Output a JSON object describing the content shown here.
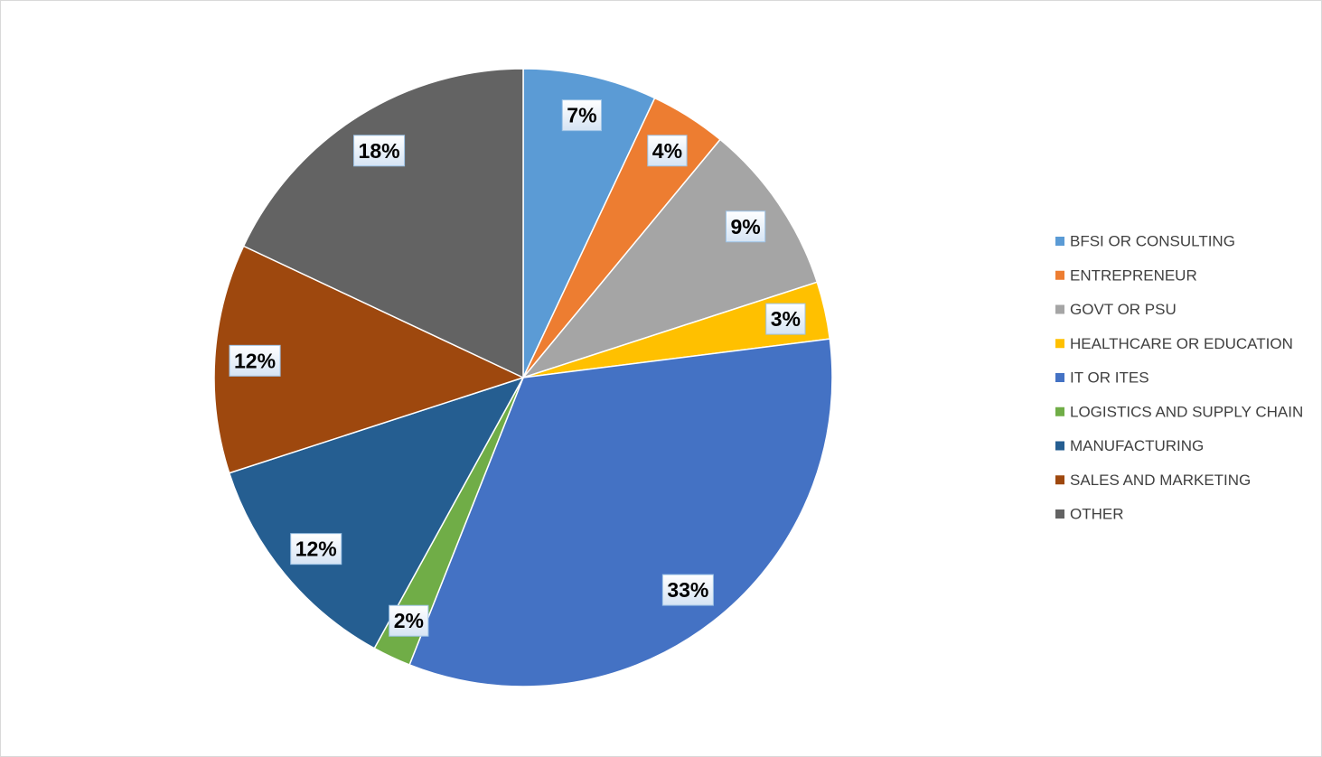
{
  "chart_data": {
    "type": "pie",
    "categories": [
      "BFSI OR CONSULTING",
      "ENTREPRENEUR",
      "GOVT OR PSU",
      "HEALTHCARE OR EDUCATION",
      "IT OR ITES",
      "LOGISTICS AND SUPPLY CHAIN",
      "MANUFACTURING",
      "SALES AND MARKETING",
      "OTHER"
    ],
    "values": [
      7,
      4,
      9,
      3,
      33,
      2,
      12,
      12,
      18
    ],
    "value_labels": [
      "7%",
      "4%",
      "9%",
      "3%",
      "33%",
      "2%",
      "12%",
      "12%",
      "18%"
    ],
    "colors": [
      "#5b9bd5",
      "#ed7d31",
      "#a5a5a5",
      "#ffc000",
      "#4472c4",
      "#70ad47",
      "#255e91",
      "#9e480e",
      "#636363"
    ],
    "legend": "right"
  }
}
